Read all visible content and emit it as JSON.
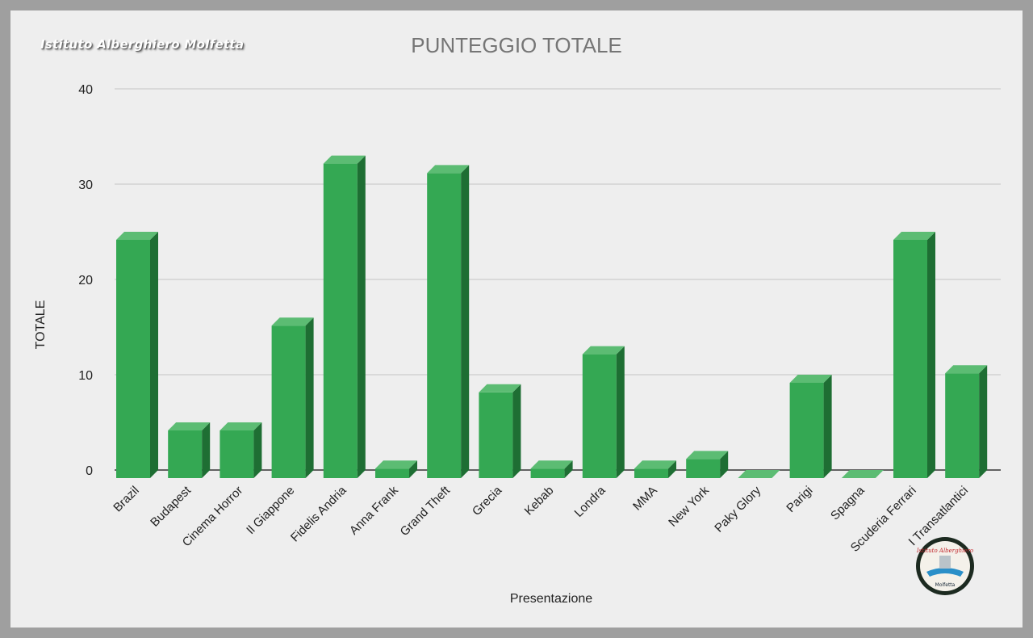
{
  "watermark": "Istituto Alberghiero Molfetta",
  "logo_text": [
    "Istituto Alberghiero",
    "Molfetta"
  ],
  "chart_data": {
    "type": "bar",
    "style": "3d",
    "title": "PUNTEGGIO TOTALE",
    "xlabel": "Presentazione",
    "ylabel": "TOTALE",
    "ylim": [
      0,
      40
    ],
    "yticks": [
      0,
      10,
      20,
      30,
      40
    ],
    "grid": true,
    "legend": "none",
    "bar_color": "#34a853",
    "categories": [
      "Brazil",
      "Budapest",
      "Cinema Horror",
      "Il Giappone",
      "Fidelis Andria",
      "Anna Frank",
      "Grand Theft",
      "Grecia",
      "Kebab",
      "Londra",
      "MMA",
      "New York",
      "Paky Glory",
      "Parigi",
      "Spagna",
      "Scuderia Ferrari",
      "I Transatlantici"
    ],
    "values": [
      25,
      5,
      5,
      16,
      33,
      1,
      32,
      9,
      1,
      13,
      1,
      2,
      0,
      10,
      0,
      25,
      11
    ]
  }
}
